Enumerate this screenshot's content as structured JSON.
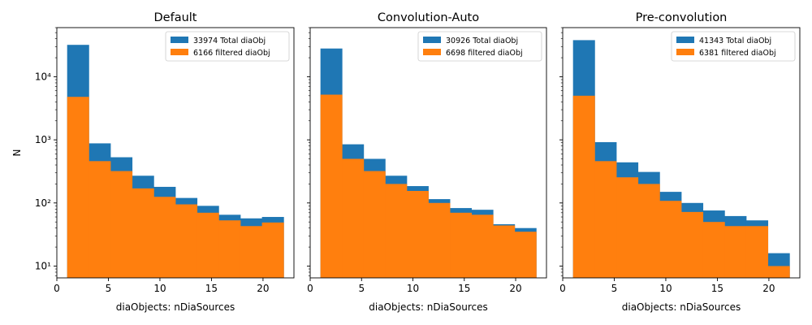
{
  "chart_data": [
    {
      "type": "bar",
      "title": "Default",
      "xlabel": "diaObjects: nDiaSources",
      "ylabel": "N",
      "yscale": "log",
      "xlim": [
        0,
        23
      ],
      "ylim": [
        6.5,
        60000
      ],
      "bin_edges": [
        1,
        3.1,
        5.2,
        7.3,
        9.4,
        11.5,
        13.6,
        15.7,
        17.8,
        19.9,
        22
      ],
      "series": [
        {
          "name": "33974 Total diaObj",
          "color": "#1f77b4",
          "values": [
            32000,
            880,
            530,
            270,
            180,
            120,
            90,
            65,
            57,
            60
          ]
        },
        {
          "name": "6166 filtered diaObj",
          "color": "#ff7f0e",
          "values": [
            4800,
            460,
            320,
            170,
            125,
            95,
            70,
            53,
            43,
            49
          ]
        }
      ],
      "legend_loc": "upper right",
      "xticks": [
        0,
        5,
        10,
        15,
        20
      ],
      "yticks": [
        10,
        100,
        1000,
        10000
      ],
      "ytick_labels": [
        "10¹",
        "10²",
        "10³",
        "10⁴"
      ]
    },
    {
      "type": "bar",
      "title": "Convolution-Auto",
      "xlabel": "diaObjects: nDiaSources",
      "ylabel": "",
      "yscale": "log",
      "xlim": [
        0,
        23
      ],
      "ylim": [
        6.5,
        60000
      ],
      "bin_edges": [
        1,
        3.1,
        5.2,
        7.3,
        9.4,
        11.5,
        13.6,
        15.7,
        17.8,
        19.9,
        22
      ],
      "series": [
        {
          "name": "30926 Total diaObj",
          "color": "#1f77b4",
          "values": [
            28000,
            850,
            500,
            270,
            185,
            115,
            83,
            78,
            46,
            40
          ]
        },
        {
          "name": "6698 filtered diaObj",
          "color": "#ff7f0e",
          "values": [
            5200,
            500,
            320,
            200,
            155,
            100,
            70,
            65,
            44,
            35
          ]
        }
      ],
      "legend_loc": "upper right",
      "xticks": [
        0,
        5,
        10,
        15,
        20
      ],
      "yticks": [
        10,
        100,
        1000,
        10000
      ],
      "ytick_labels": [
        "",
        "",
        "",
        ""
      ]
    },
    {
      "type": "bar",
      "title": "Pre-convolution",
      "xlabel": "diaObjects: nDiaSources",
      "ylabel": "",
      "yscale": "log",
      "xlim": [
        0,
        23
      ],
      "ylim": [
        6.5,
        60000
      ],
      "bin_edges": [
        1,
        3.1,
        5.2,
        7.3,
        9.4,
        11.5,
        13.6,
        15.7,
        17.8,
        19.9,
        22
      ],
      "series": [
        {
          "name": "41343 Total diaObj",
          "color": "#1f77b4",
          "values": [
            38000,
            920,
            440,
            310,
            150,
            100,
            76,
            62,
            53,
            16
          ]
        },
        {
          "name": "6381 filtered diaObj",
          "color": "#ff7f0e",
          "values": [
            5000,
            460,
            255,
            200,
            108,
            72,
            50,
            43,
            43,
            10
          ]
        }
      ],
      "legend_loc": "upper right",
      "xticks": [
        0,
        5,
        10,
        15,
        20
      ],
      "yticks": [
        10,
        100,
        1000,
        10000
      ],
      "ytick_labels": [
        "",
        "",
        "",
        ""
      ]
    }
  ]
}
